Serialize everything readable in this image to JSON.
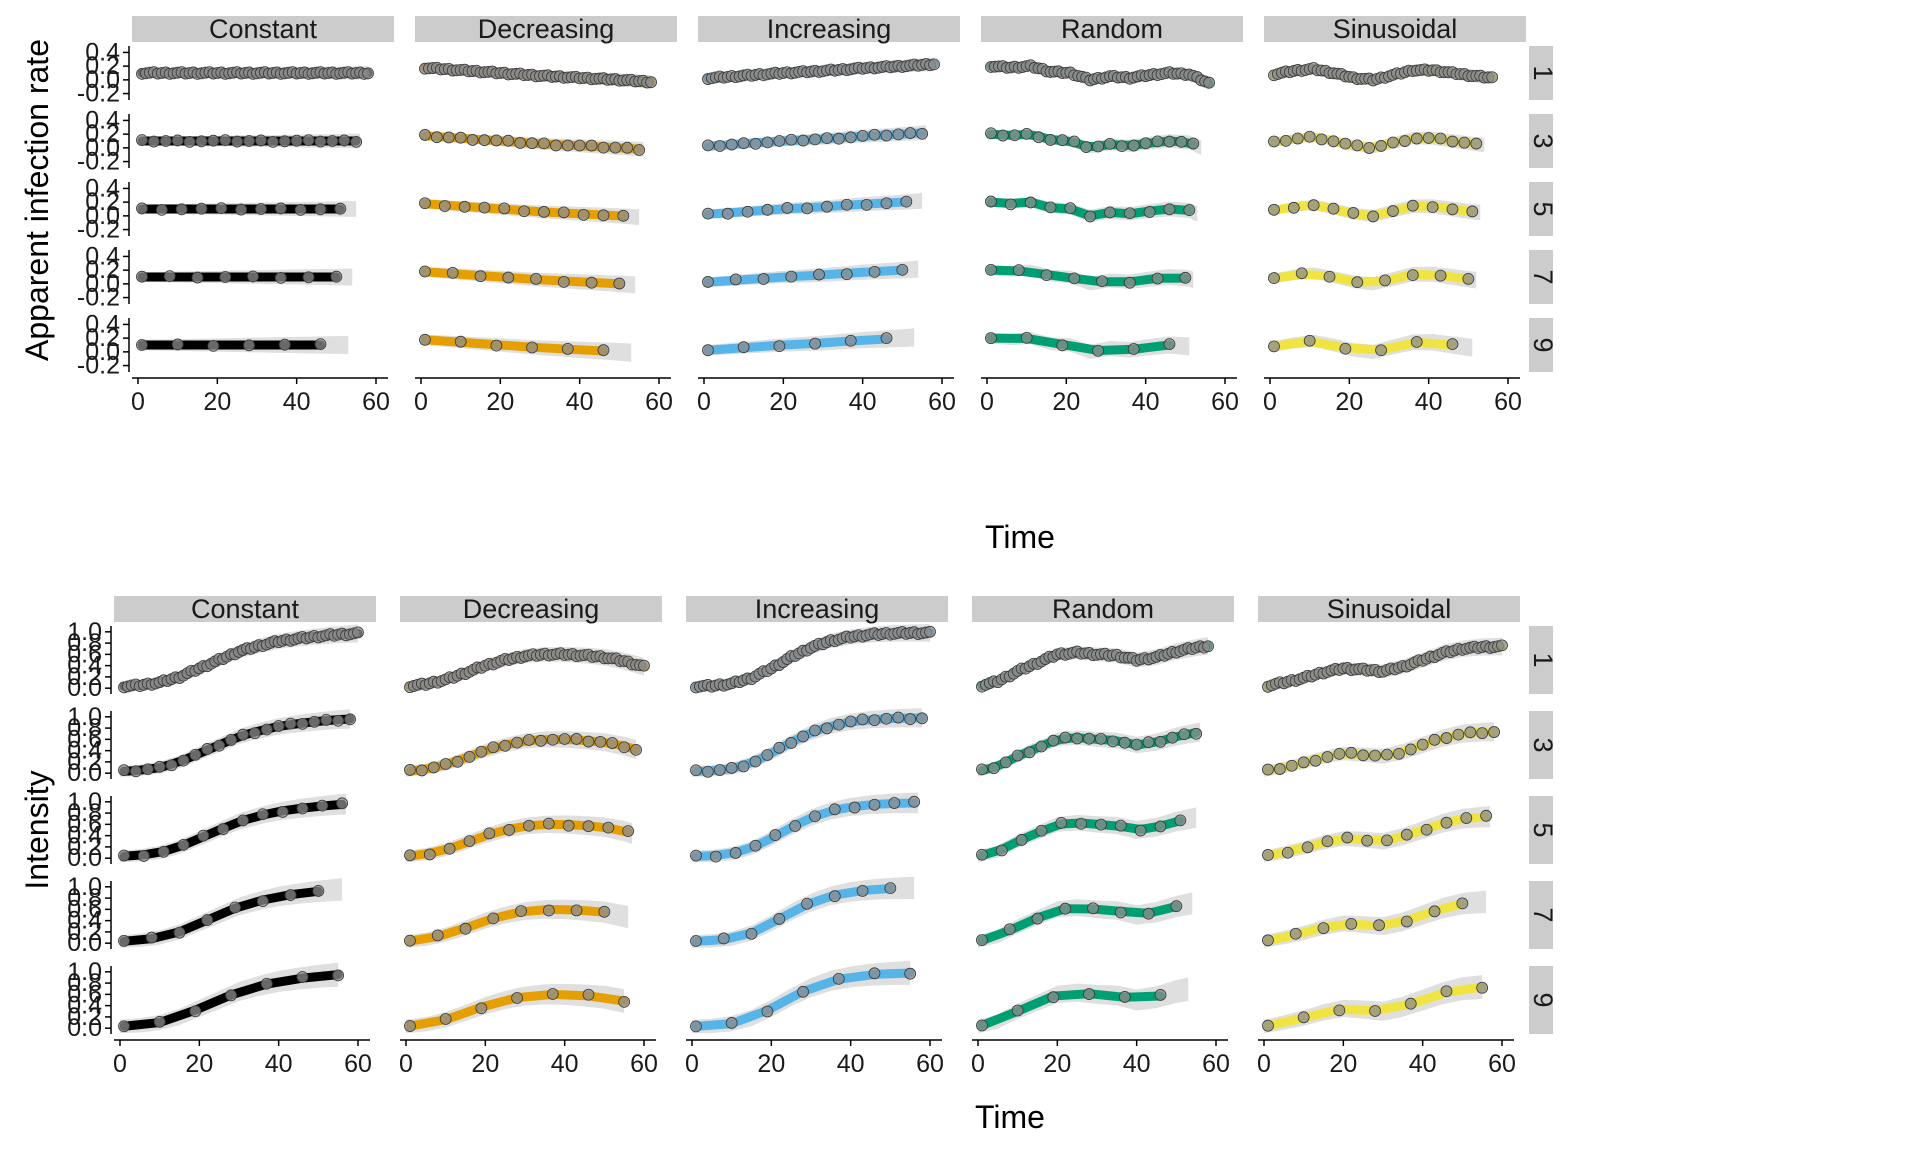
{
  "colors": {
    "Constant": "#000000",
    "Decreasing": "#E69F00",
    "Increasing": "#56B4E9",
    "Random": "#009E73",
    "Sinusoidal": "#F0E442",
    "ribbon": "#d9d9d9",
    "strip": "#cccccc",
    "point": "#8c8c8c"
  },
  "panels": [
    "Constant",
    "Decreasing",
    "Increasing",
    "Random",
    "Sinusoidal"
  ],
  "rows": [
    "1",
    "3",
    "5",
    "7",
    "9"
  ],
  "x_ticks": [
    "0",
    "20",
    "40",
    "60"
  ],
  "chart_data": [
    {
      "type": "line",
      "facet_cols": [
        "Constant",
        "Decreasing",
        "Increasing",
        "Random",
        "Sinusoidal"
      ],
      "facet_rows": [
        "1",
        "3",
        "5",
        "7",
        "9"
      ],
      "xlabel": "Time",
      "ylabel": "Apparent infection rate",
      "xlim": [
        0,
        60
      ],
      "ylim": [
        -0.25,
        0.45
      ],
      "x_ticks": [
        0,
        20,
        40,
        60
      ],
      "y_ticks": [
        -0.2,
        0.0,
        0.2,
        0.4
      ],
      "y_tick_labels": [
        "-0.2",
        "0.0",
        "0.2",
        "0.4"
      ],
      "series": [
        {
          "name": "Constant",
          "x": [
            0,
            10,
            20,
            30,
            40,
            50,
            58
          ],
          "values": [
            0.1,
            0.1,
            0.1,
            0.1,
            0.1,
            0.1,
            0.1
          ]
        },
        {
          "name": "Decreasing",
          "x": [
            0,
            10,
            20,
            30,
            40,
            50,
            58
          ],
          "values": [
            0.18,
            0.14,
            0.1,
            0.06,
            0.03,
            0.0,
            -0.03
          ]
        },
        {
          "name": "Increasing",
          "x": [
            0,
            10,
            20,
            30,
            40,
            50,
            58
          ],
          "values": [
            0.02,
            0.06,
            0.1,
            0.13,
            0.17,
            0.2,
            0.23
          ]
        },
        {
          "name": "Random",
          "x": [
            1,
            6,
            11,
            16,
            21,
            26,
            31,
            36,
            41,
            46,
            51,
            56
          ],
          "values": [
            0.2,
            0.18,
            0.2,
            0.12,
            0.1,
            0.0,
            0.05,
            0.03,
            0.07,
            0.1,
            0.08,
            -0.05
          ]
        },
        {
          "name": "Sinusoidal",
          "x": [
            1,
            6,
            11,
            16,
            21,
            26,
            31,
            36,
            41,
            46,
            51,
            56
          ],
          "values": [
            0.08,
            0.13,
            0.16,
            0.1,
            0.03,
            0.0,
            0.07,
            0.14,
            0.14,
            0.1,
            0.06,
            0.03
          ]
        }
      ]
    },
    {
      "type": "line",
      "facet_cols": [
        "Constant",
        "Decreasing",
        "Increasing",
        "Random",
        "Sinusoidal"
      ],
      "facet_rows": [
        "1",
        "3",
        "5",
        "7",
        "9"
      ],
      "xlabel": "Time",
      "ylabel": "Intensity",
      "xlim": [
        0,
        60
      ],
      "ylim": [
        -0.05,
        1.05
      ],
      "x_ticks": [
        0,
        20,
        40,
        60
      ],
      "y_ticks": [
        0.0,
        0.2,
        0.4,
        0.6,
        0.8,
        1.0
      ],
      "y_tick_labels": [
        "0.0",
        "0.2",
        "0.4",
        "0.6",
        "0.8",
        "1.0"
      ],
      "series": [
        {
          "name": "Constant",
          "x": [
            0,
            5,
            10,
            15,
            20,
            25,
            30,
            35,
            40,
            45,
            50,
            55,
            60
          ],
          "values": [
            0.03,
            0.05,
            0.1,
            0.2,
            0.35,
            0.5,
            0.65,
            0.75,
            0.83,
            0.88,
            0.92,
            0.95,
            0.97
          ]
        },
        {
          "name": "Decreasing",
          "x": [
            0,
            5,
            10,
            15,
            20,
            25,
            30,
            35,
            40,
            45,
            50,
            55,
            60
          ],
          "values": [
            0.03,
            0.07,
            0.15,
            0.27,
            0.4,
            0.5,
            0.57,
            0.6,
            0.6,
            0.58,
            0.55,
            0.48,
            0.38
          ]
        },
        {
          "name": "Increasing",
          "x": [
            0,
            5,
            10,
            15,
            20,
            25,
            30,
            35,
            40,
            45,
            50,
            55,
            60
          ],
          "values": [
            0.03,
            0.04,
            0.08,
            0.18,
            0.35,
            0.55,
            0.72,
            0.84,
            0.91,
            0.95,
            0.97,
            0.98,
            0.98
          ]
        },
        {
          "name": "Random",
          "x": [
            0,
            5,
            10,
            15,
            20,
            25,
            30,
            35,
            40,
            45,
            50,
            55,
            58
          ],
          "values": [
            0.03,
            0.12,
            0.3,
            0.45,
            0.6,
            0.63,
            0.6,
            0.58,
            0.5,
            0.55,
            0.65,
            0.72,
            0.75
          ]
        },
        {
          "name": "Sinusoidal",
          "x": [
            0,
            5,
            10,
            15,
            20,
            25,
            30,
            35,
            40,
            45,
            50,
            55,
            60
          ],
          "values": [
            0.03,
            0.1,
            0.18,
            0.28,
            0.35,
            0.33,
            0.3,
            0.38,
            0.5,
            0.62,
            0.7,
            0.73,
            0.74
          ]
        }
      ]
    }
  ]
}
